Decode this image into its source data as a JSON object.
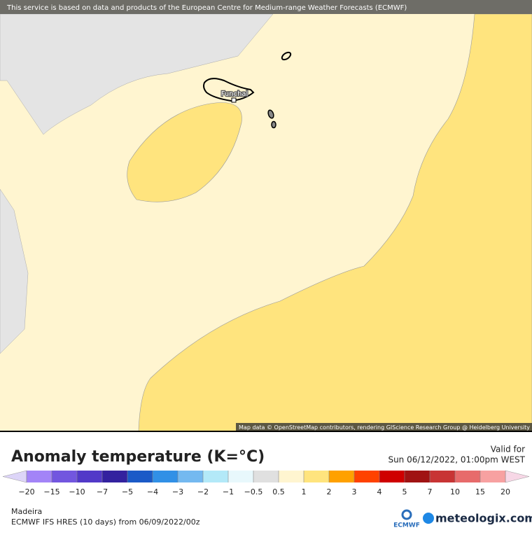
{
  "header": {
    "notice": "This service is based on data and products of the European Centre for Medium-range Weather Forecasts (ECMWF)"
  },
  "map": {
    "place_label": "Funchal",
    "attribution": "Map data © OpenStreetMap contributors, rendering GIScience Research Group @ Heidelberg University"
  },
  "legend": {
    "title": "Anomaly temperature (K=°C)",
    "valid_label": "Valid for",
    "valid_time": "Sun 06/12/2022, 01:00pm WEST",
    "ticks": [
      "−20",
      "−15",
      "−10",
      "−7",
      "−5",
      "−4",
      "−3",
      "−2",
      "−1",
      "−0.5",
      "0.5",
      "1",
      "2",
      "3",
      "4",
      "5",
      "7",
      "10",
      "15",
      "20"
    ],
    "colors": [
      "#a384f7",
      "#7256df",
      "#5239c8",
      "#33219f",
      "#1b5ac7",
      "#3190e6",
      "#74b9f0",
      "#b3e9f8",
      "#e8f8fc",
      "#e0e0e0",
      "#fff5d0",
      "#ffe47e",
      "#ffa100",
      "#ff4200",
      "#cf0000",
      "#a01313",
      "#c83434",
      "#e76b6b",
      "#f7a1a1"
    ],
    "low_color": "#ddd5f8",
    "high_color": "#f7d7e6"
  },
  "footer": {
    "region": "Madeira",
    "model": "ECMWF IFS HRES (10 days) from 06/09/2022/00z",
    "logo_left": "ECMWF",
    "logo_right": "meteologix.com"
  }
}
